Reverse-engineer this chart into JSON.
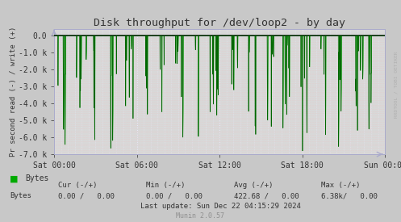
{
  "title": "Disk throughput for /dev/loop2 - by day",
  "ylabel": "Pr second read (-) / write (+)",
  "xlabel_ticks": [
    "Sat 00:00",
    "Sat 06:00",
    "Sat 12:00",
    "Sat 18:00",
    "Sun 00:00"
  ],
  "xtick_positions": [
    0.0,
    0.25,
    0.5,
    0.75,
    1.0
  ],
  "ylim": [
    -7000,
    400
  ],
  "yticks": [
    0,
    -1000,
    -2000,
    -3000,
    -4000,
    -5000,
    -6000,
    -7000
  ],
  "ytick_labels": [
    "0.0",
    "-1.0 k",
    "-2.0 k",
    "-3.0 k",
    "-4.0 k",
    "-5.0 k",
    "-6.0 k",
    "-7.0 k"
  ],
  "bg_color": "#c8c8c8",
  "plot_bg_color": "#d8d8d8",
  "grid_v_color": "#e8e8f8",
  "grid_h_color": "#e8c8c8",
  "line_color": "#00cc00",
  "line_color2": "#006600",
  "zero_line_color": "#111111",
  "watermark_text": "RRDTOOL / TOBI OETIKER",
  "legend_label": "Bytes",
  "legend_color": "#00aa00",
  "munin_text": "Munin 2.0.57",
  "footer_cur_label": "Cur (-/+)",
  "footer_min_label": "Min (-/+)",
  "footer_avg_label": "Avg (-/+)",
  "footer_max_label": "Max (-/+)",
  "footer_bytes_label": "Bytes",
  "footer_cur_val": "0.00 /   0.00",
  "footer_min_val": "0.00 /   0.00",
  "footer_avg_val": "422.68 /   0.00",
  "footer_max_val": "6.38k/   0.00",
  "footer_lastupdate": "Last update: Sun Dec 22 04:15:29 2024",
  "text_color": "#333333",
  "watermark_color": "#b0b0b0",
  "spine_color": "#aaaacc"
}
